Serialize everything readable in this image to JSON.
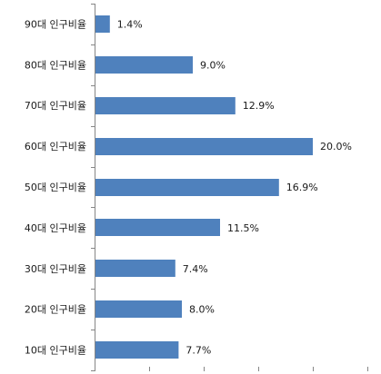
{
  "chart_data": {
    "type": "bar",
    "orientation": "horizontal",
    "categories": [
      "90대 인구비율",
      "80대 인구비율",
      "70대 인구비율",
      "60대 인구비율",
      "50대 인구비율",
      "40대 인구비율",
      "30대 인구비율",
      "20대 인구비율",
      "10대 인구비율"
    ],
    "values": [
      1.4,
      9.0,
      12.9,
      20.0,
      16.9,
      11.5,
      7.4,
      8.0,
      7.7
    ],
    "value_labels": [
      "1.4%",
      "9.0%",
      "12.9%",
      "20.0%",
      "16.9%",
      "11.5%",
      "7.4%",
      "8.0%",
      "7.7%"
    ],
    "title": "",
    "xlabel": "",
    "ylabel": "",
    "xlim": [
      0,
      25
    ],
    "grid": false,
    "legend": "none",
    "colors": {
      "bar": "#4f81bd",
      "axis": "#868686",
      "text": "#1a1a1a"
    }
  }
}
